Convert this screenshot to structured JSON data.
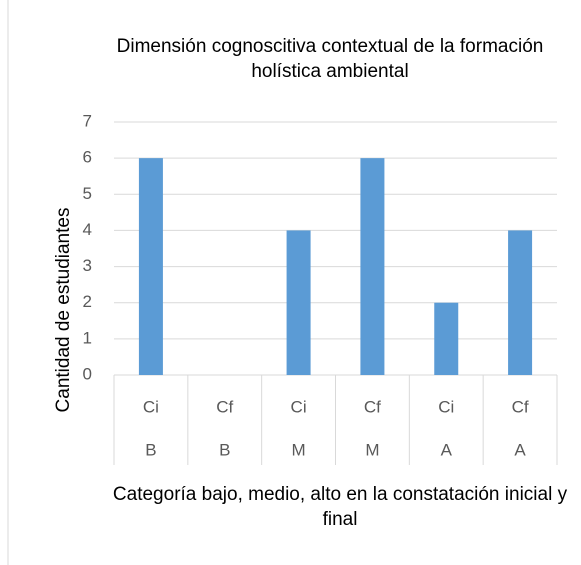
{
  "chart_data": {
    "type": "bar",
    "title": "Dimensión cognoscitiva contextual de la formación holística ambiental",
    "y_label": "Cantidad de estudiantes",
    "x_label": "Categoría bajo, medio, alto en la constatación inicial y final",
    "categories": [
      "Ci",
      "Cf",
      "Ci",
      "Cf",
      "Ci",
      "Cf"
    ],
    "groups": [
      "B",
      "B",
      "M",
      "M",
      "A",
      "A"
    ],
    "values": [
      6,
      0,
      4,
      6,
      2,
      4
    ],
    "color": "#5b9bd5",
    "ylim": [
      0,
      7
    ],
    "yticks": [
      0,
      1,
      2,
      3,
      4,
      5,
      6,
      7
    ],
    "grid": true
  }
}
